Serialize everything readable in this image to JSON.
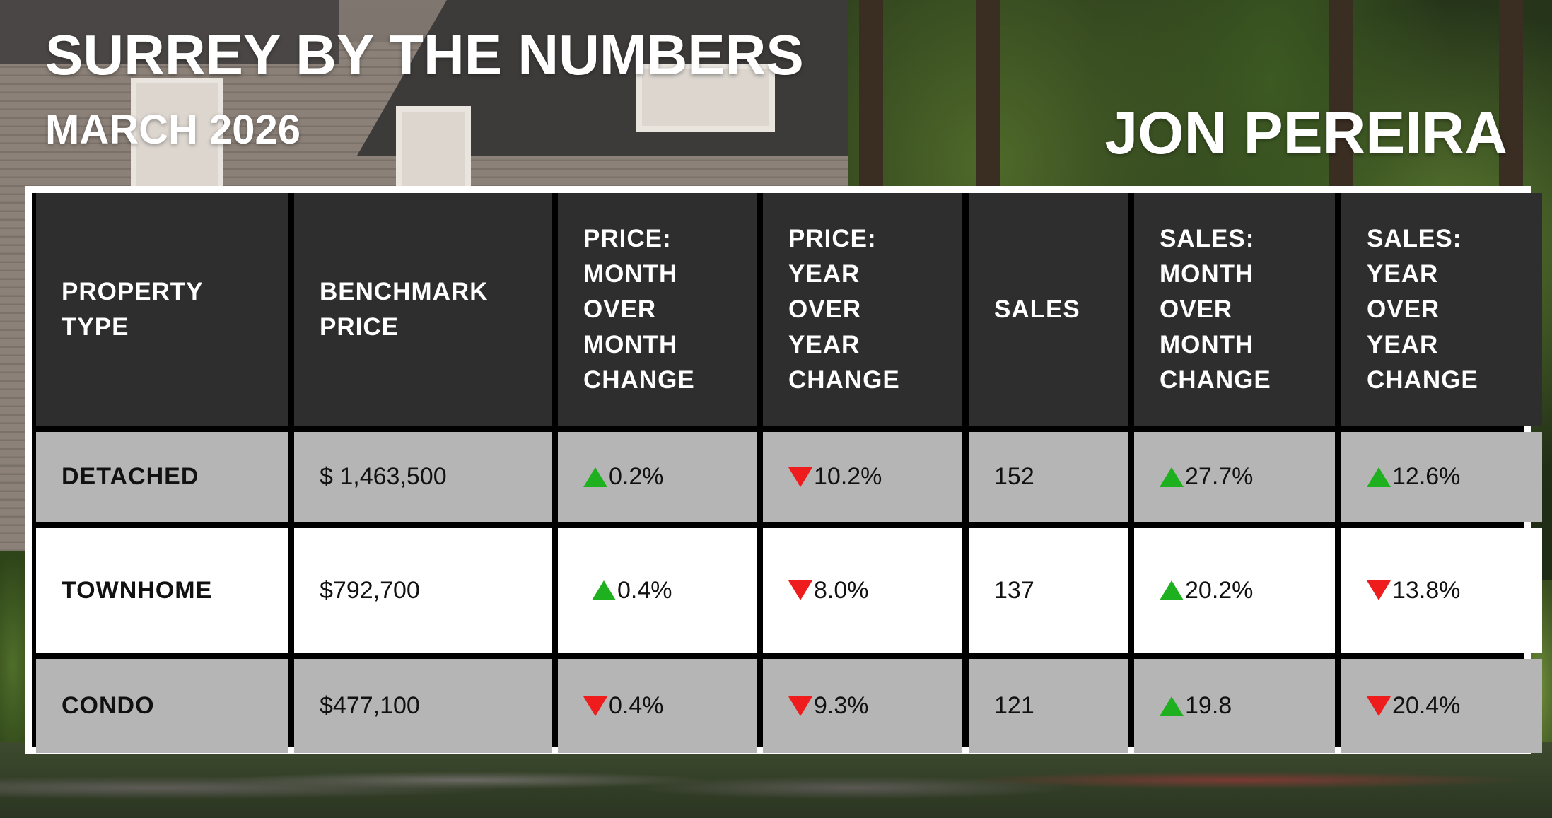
{
  "header": {
    "title": "SURREY BY THE NUMBERS",
    "subtitle": "MARCH 2026",
    "agent_name": "JON PEREIRA"
  },
  "colors": {
    "header_bg": "#2e2e2e",
    "row_gray": "#b5b5b5",
    "row_white": "#ffffff",
    "up_arrow": "#1eb01e",
    "down_arrow": "#ee1c1c"
  },
  "table": {
    "columns": [
      "PROPERTY\nTYPE",
      "BENCHMARK\nPRICE",
      "PRICE:\nMONTH\nOVER\nMONTH\nCHANGE",
      "PRICE:\nYEAR\nOVER\nYEAR\nCHANGE",
      "SALES",
      "SALES:\nMONTH\nOVER\nMONTH\nCHANGE",
      "SALES:\nYEAR\nOVER\nYEAR\nCHANGE"
    ],
    "rows": [
      {
        "type": "DETACHED",
        "benchmark": "$ 1,463,500",
        "price_mom": "0.2%",
        "price_mom_dir": "up",
        "price_yoy": "10.2%",
        "price_yoy_dir": "down",
        "sales": "152",
        "sales_mom": "27.7%",
        "sales_mom_dir": "up",
        "sales_yoy": "12.6%",
        "sales_yoy_dir": "up"
      },
      {
        "type": "TOWNHOME",
        "benchmark": "$792,700",
        "price_mom": "0.4%",
        "price_mom_dir": "up",
        "price_yoy": "8.0%",
        "price_yoy_dir": "down",
        "sales": "137",
        "sales_mom": "20.2%",
        "sales_mom_dir": "up",
        "sales_yoy": "13.8%",
        "sales_yoy_dir": "down"
      },
      {
        "type": "CONDO",
        "benchmark": "$477,100",
        "price_mom": "0.4%",
        "price_mom_dir": "down",
        "price_yoy": "9.3%",
        "price_yoy_dir": "down",
        "sales": "121",
        "sales_mom": "19.8",
        "sales_mom_dir": "up",
        "sales_yoy": "20.4%",
        "sales_yoy_dir": "down"
      }
    ]
  }
}
